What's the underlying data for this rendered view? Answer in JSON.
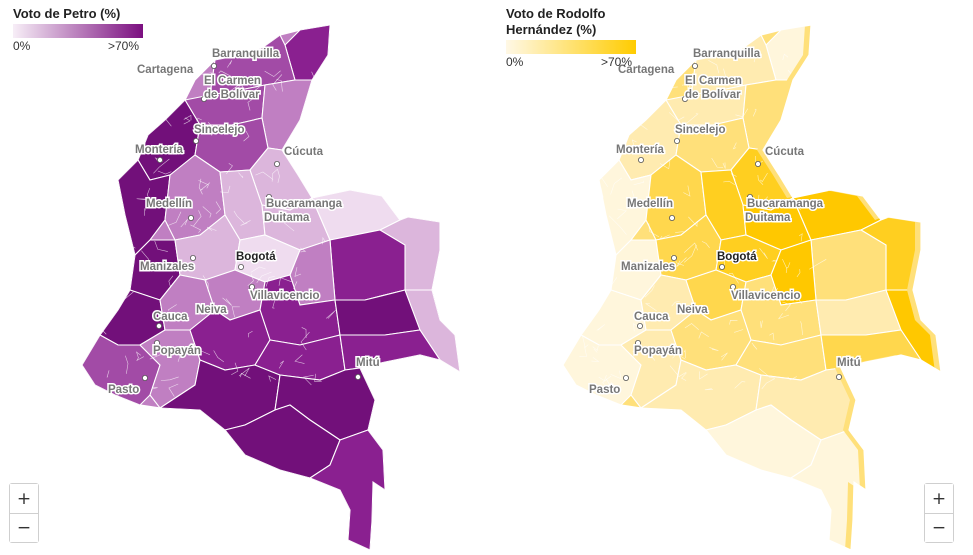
{
  "maps": [
    {
      "legend_title": "Voto de Petro (%)",
      "legend_min": "0%",
      "legend_max": ">70%",
      "color_low": "#f7eef7",
      "color_high": "#7b0f80",
      "ramp": [
        "#efdcef",
        "#dcb6dc",
        "#c07fc2",
        "#a24ba6",
        "#8a2090",
        "#72107a"
      ]
    },
    {
      "legend_title": "Voto de Rodolfo Hernández (%)",
      "legend_min": "0%",
      "legend_max": ">70%",
      "color_low": "#fff8e6",
      "color_high": "#ffcc00",
      "ramp": [
        "#fff6dc",
        "#ffebb0",
        "#ffe07a",
        "#ffd74d",
        "#ffcf20",
        "#ffc800"
      ]
    }
  ],
  "cities": [
    {
      "name": "Barranquilla",
      "capital": false
    },
    {
      "name": "Cartagena",
      "capital": false
    },
    {
      "name": "El Carmen",
      "capital": false
    },
    {
      "name": "de Bolívar",
      "capital": false
    },
    {
      "name": "Sincelejo",
      "capital": false
    },
    {
      "name": "Montería",
      "capital": false
    },
    {
      "name": "Cúcuta",
      "capital": false
    },
    {
      "name": "Medellín",
      "capital": false
    },
    {
      "name": "Bucaramanga",
      "capital": false
    },
    {
      "name": "Duitama",
      "capital": false
    },
    {
      "name": "Bogotá",
      "capital": true
    },
    {
      "name": "Manizales",
      "capital": false
    },
    {
      "name": "Villavicencio",
      "capital": false
    },
    {
      "name": "Cauca",
      "capital": false
    },
    {
      "name": "Neiva",
      "capital": false
    },
    {
      "name": "Popayán",
      "capital": false
    },
    {
      "name": "Mitú",
      "capital": false
    },
    {
      "name": "Pasto",
      "capital": false
    }
  ],
  "zoom": {
    "in_label": "+",
    "out_label": "−"
  }
}
